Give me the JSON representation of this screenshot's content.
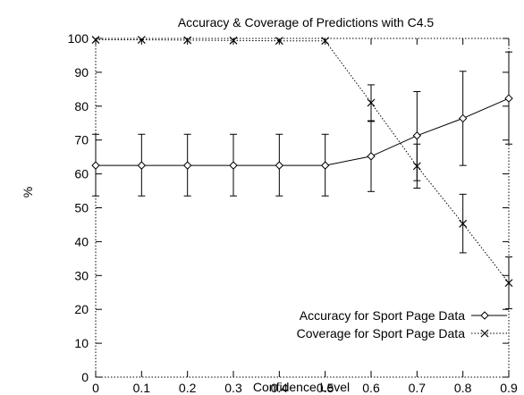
{
  "chart_data": {
    "type": "line",
    "title": "Accuracy & Coverage of Predictions with C4.5",
    "xlabel": "Confidence Level",
    "ylabel": "%",
    "xlim": [
      0,
      0.9
    ],
    "ylim": [
      0,
      100
    ],
    "x_ticks": [
      "0",
      "0.1",
      "0.2",
      "0.3",
      "0.4",
      "0.5",
      "0.6",
      "0.7",
      "0.8",
      "0.9"
    ],
    "y_ticks": [
      "0",
      "10",
      "20",
      "30",
      "40",
      "50",
      "60",
      "70",
      "80",
      "90",
      "100"
    ],
    "x": [
      0,
      0.1,
      0.2,
      0.3,
      0.4,
      0.5,
      0.6,
      0.7,
      0.8,
      0.9
    ],
    "grid": false,
    "legend_position": "bottom-right",
    "series": [
      {
        "name": "Accuracy for Sport Page Data",
        "marker": "diamond",
        "line_style": "solid",
        "values": [
          62.5,
          62.5,
          62.5,
          62.5,
          62.5,
          62.5,
          65.2,
          71.3,
          76.4,
          82.3
        ],
        "error_low": [
          53.5,
          53.5,
          53.5,
          53.5,
          53.5,
          53.5,
          54.8,
          58.0,
          62.5,
          68.8
        ],
        "error_high": [
          71.7,
          71.7,
          71.7,
          71.7,
          71.7,
          71.7,
          75.7,
          84.3,
          90.3,
          96.0
        ]
      },
      {
        "name": "Coverage for Sport Page Data",
        "marker": "cross",
        "line_style": "dotted",
        "values": [
          99.6,
          99.6,
          99.5,
          99.4,
          99.3,
          99.3,
          81.0,
          62.3,
          45.3,
          27.8
        ],
        "error_low": [
          null,
          null,
          null,
          null,
          null,
          null,
          75.5,
          55.8,
          36.7,
          20.2
        ],
        "error_high": [
          null,
          null,
          null,
          null,
          null,
          null,
          86.3,
          68.8,
          54.0,
          35.5
        ]
      }
    ]
  }
}
